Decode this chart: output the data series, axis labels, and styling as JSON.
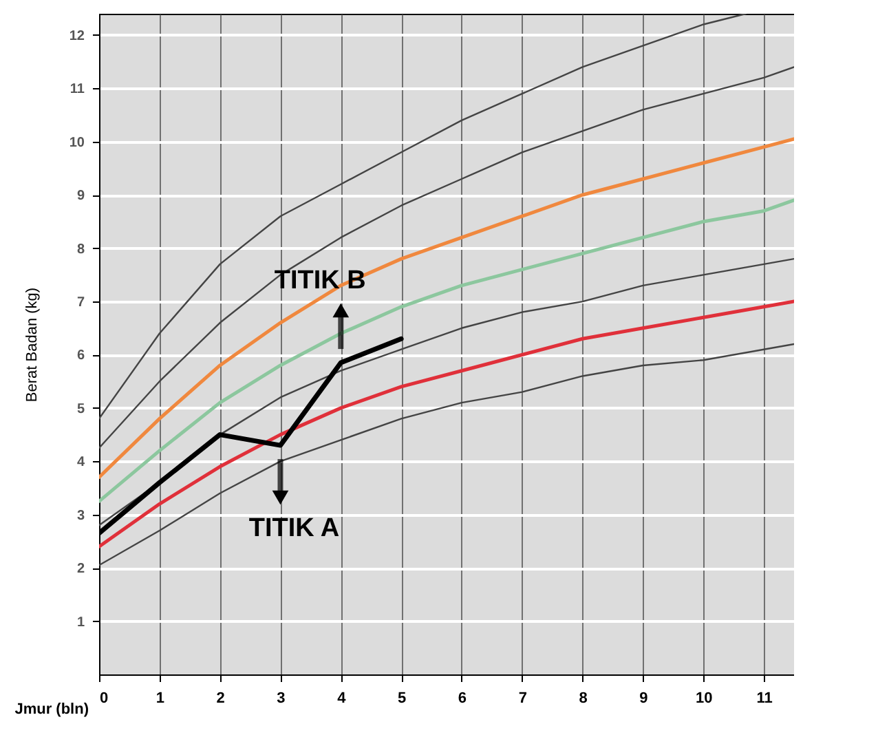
{
  "chart_data": {
    "type": "line",
    "xlabel": "Jmur (bln)",
    "ylabel": "Berat Badan (kg)",
    "xlim": [
      0,
      11.5
    ],
    "ylim": [
      0,
      12.4
    ],
    "xticks": [
      0,
      1,
      2,
      3,
      4,
      5,
      6,
      7,
      8,
      9,
      10,
      11
    ],
    "yticks": [
      1,
      2,
      3,
      4,
      5,
      6,
      7,
      8,
      9,
      10,
      11,
      12
    ],
    "grid": true,
    "series": [
      {
        "color": "#444444",
        "x": [
          0,
          1,
          2,
          3,
          4,
          5,
          6,
          7,
          8,
          9,
          10,
          10.7
        ],
        "values": [
          4.8,
          6.4,
          7.7,
          8.6,
          9.2,
          9.8,
          10.4,
          10.9,
          11.4,
          11.8,
          12.2,
          12.4
        ]
      },
      {
        "color": "#444444",
        "x": [
          0,
          1,
          2,
          3,
          4,
          5,
          6,
          7,
          8,
          9,
          10,
          11,
          11.5
        ],
        "values": [
          4.25,
          5.5,
          6.6,
          7.5,
          8.2,
          8.8,
          9.3,
          9.8,
          10.2,
          10.6,
          10.9,
          11.2,
          11.4
        ]
      },
      {
        "color": "#f0883e",
        "x": [
          0,
          1,
          2,
          3,
          4,
          5,
          6,
          7,
          8,
          9,
          10,
          11,
          11.5
        ],
        "values": [
          3.7,
          4.8,
          5.8,
          6.6,
          7.3,
          7.8,
          8.2,
          8.6,
          9.0,
          9.3,
          9.6,
          9.9,
          10.05
        ]
      },
      {
        "color": "#8cc79e",
        "x": [
          0,
          1,
          2,
          3,
          4,
          5,
          6,
          7,
          8,
          9,
          10,
          11,
          11.5
        ],
        "values": [
          3.25,
          4.2,
          5.1,
          5.8,
          6.4,
          6.9,
          7.3,
          7.6,
          7.9,
          8.2,
          8.5,
          8.7,
          8.9
        ]
      },
      {
        "color": "#444444",
        "x": [
          0,
          1,
          2,
          3,
          4,
          5,
          6,
          7,
          8,
          9,
          10,
          11,
          11.5
        ],
        "values": [
          2.8,
          3.6,
          4.5,
          5.2,
          5.7,
          6.1,
          6.5,
          6.8,
          7.0,
          7.3,
          7.5,
          7.7,
          7.8
        ]
      },
      {
        "color": "#e0303a",
        "x": [
          0,
          1,
          2,
          3,
          4,
          5,
          6,
          7,
          8,
          9,
          10,
          11,
          11.5
        ],
        "values": [
          2.4,
          3.2,
          3.9,
          4.5,
          5.0,
          5.4,
          5.7,
          6.0,
          6.3,
          6.5,
          6.7,
          6.9,
          7.0
        ]
      },
      {
        "color": "#444444",
        "x": [
          0,
          1,
          2,
          3,
          4,
          5,
          6,
          7,
          8,
          9,
          10,
          11,
          11.5
        ],
        "values": [
          2.05,
          2.7,
          3.4,
          4.0,
          4.4,
          4.8,
          5.1,
          5.3,
          5.6,
          5.8,
          5.9,
          6.1,
          6.2
        ]
      },
      {
        "color": "#000000",
        "x": [
          0,
          1,
          2,
          3,
          4,
          5
        ],
        "values": [
          2.65,
          3.6,
          4.5,
          4.3,
          5.85,
          6.3
        ]
      }
    ],
    "annotations": [
      {
        "text": "TITIK B",
        "x": 4,
        "y": 5.85
      },
      {
        "text": "TITIK A",
        "x": 3,
        "y": 4.3
      }
    ]
  }
}
